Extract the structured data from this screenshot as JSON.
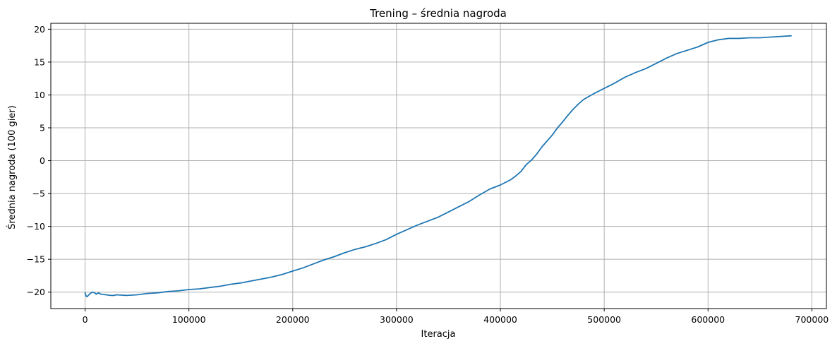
{
  "chart_data": {
    "type": "line",
    "title": "Trening – średnia nagroda",
    "xlabel": "Iteracja",
    "ylabel": "Średnia nagroda (100 gier)",
    "xlim": [
      -33000,
      714000
    ],
    "ylim": [
      -22.5,
      20.9
    ],
    "xticks": [
      0,
      100000,
      200000,
      300000,
      400000,
      500000,
      600000,
      700000
    ],
    "xtick_labels": [
      "0",
      "100000",
      "200000",
      "300000",
      "400000",
      "500000",
      "600000",
      "700000"
    ],
    "yticks": [
      -20,
      -15,
      -10,
      -5,
      0,
      5,
      10,
      15,
      20
    ],
    "ytick_labels": [
      "−20",
      "−15",
      "−10",
      "−5",
      "0",
      "5",
      "10",
      "15",
      "20"
    ],
    "grid": true,
    "color": "#1f77b4",
    "series": [
      {
        "x": [
          0,
          1000,
          2000,
          3000,
          5000,
          7000,
          9000,
          11000,
          13000,
          15000,
          20000,
          25000,
          28000,
          30000,
          40000,
          50000,
          60000,
          70000,
          80000,
          90000,
          100000,
          110000,
          120000,
          130000,
          140000,
          150000,
          160000,
          170000,
          180000,
          190000,
          200000,
          210000,
          220000,
          230000,
          240000,
          250000,
          260000,
          270000,
          280000,
          290000,
          300000,
          310000,
          320000,
          330000,
          340000,
          350000,
          360000,
          370000,
          380000,
          390000,
          400000,
          410000,
          415000,
          420000,
          425000,
          430000,
          435000,
          440000,
          445000,
          450000,
          455000,
          460000,
          465000,
          470000,
          475000,
          480000,
          490000,
          500000,
          510000,
          520000,
          530000,
          540000,
          550000,
          560000,
          570000,
          580000,
          590000,
          600000,
          610000,
          620000,
          630000,
          640000,
          650000,
          660000,
          670000,
          680000
        ],
        "y": [
          -20.1,
          -20.6,
          -20.7,
          -20.5,
          -20.2,
          -20.0,
          -20.1,
          -20.3,
          -20.1,
          -20.3,
          -20.4,
          -20.5,
          -20.5,
          -20.4,
          -20.5,
          -20.4,
          -20.2,
          -20.1,
          -19.9,
          -19.8,
          -19.6,
          -19.5,
          -19.3,
          -19.1,
          -18.8,
          -18.6,
          -18.3,
          -18.0,
          -17.7,
          -17.3,
          -16.8,
          -16.3,
          -15.7,
          -15.1,
          -14.6,
          -14.0,
          -13.5,
          -13.1,
          -12.6,
          -12.0,
          -11.2,
          -10.5,
          -9.8,
          -9.2,
          -8.6,
          -7.8,
          -7.0,
          -6.2,
          -5.2,
          -4.3,
          -3.7,
          -2.9,
          -2.3,
          -1.6,
          -0.6,
          0.1,
          1.0,
          2.1,
          3.0,
          3.9,
          5.0,
          5.9,
          6.9,
          7.8,
          8.6,
          9.3,
          10.2,
          11.0,
          11.8,
          12.7,
          13.4,
          14.0,
          14.8,
          15.6,
          16.3,
          16.8,
          17.3,
          18.0,
          18.4,
          18.6,
          18.6,
          18.7,
          18.7,
          18.8,
          18.9,
          19.0
        ]
      }
    ]
  }
}
